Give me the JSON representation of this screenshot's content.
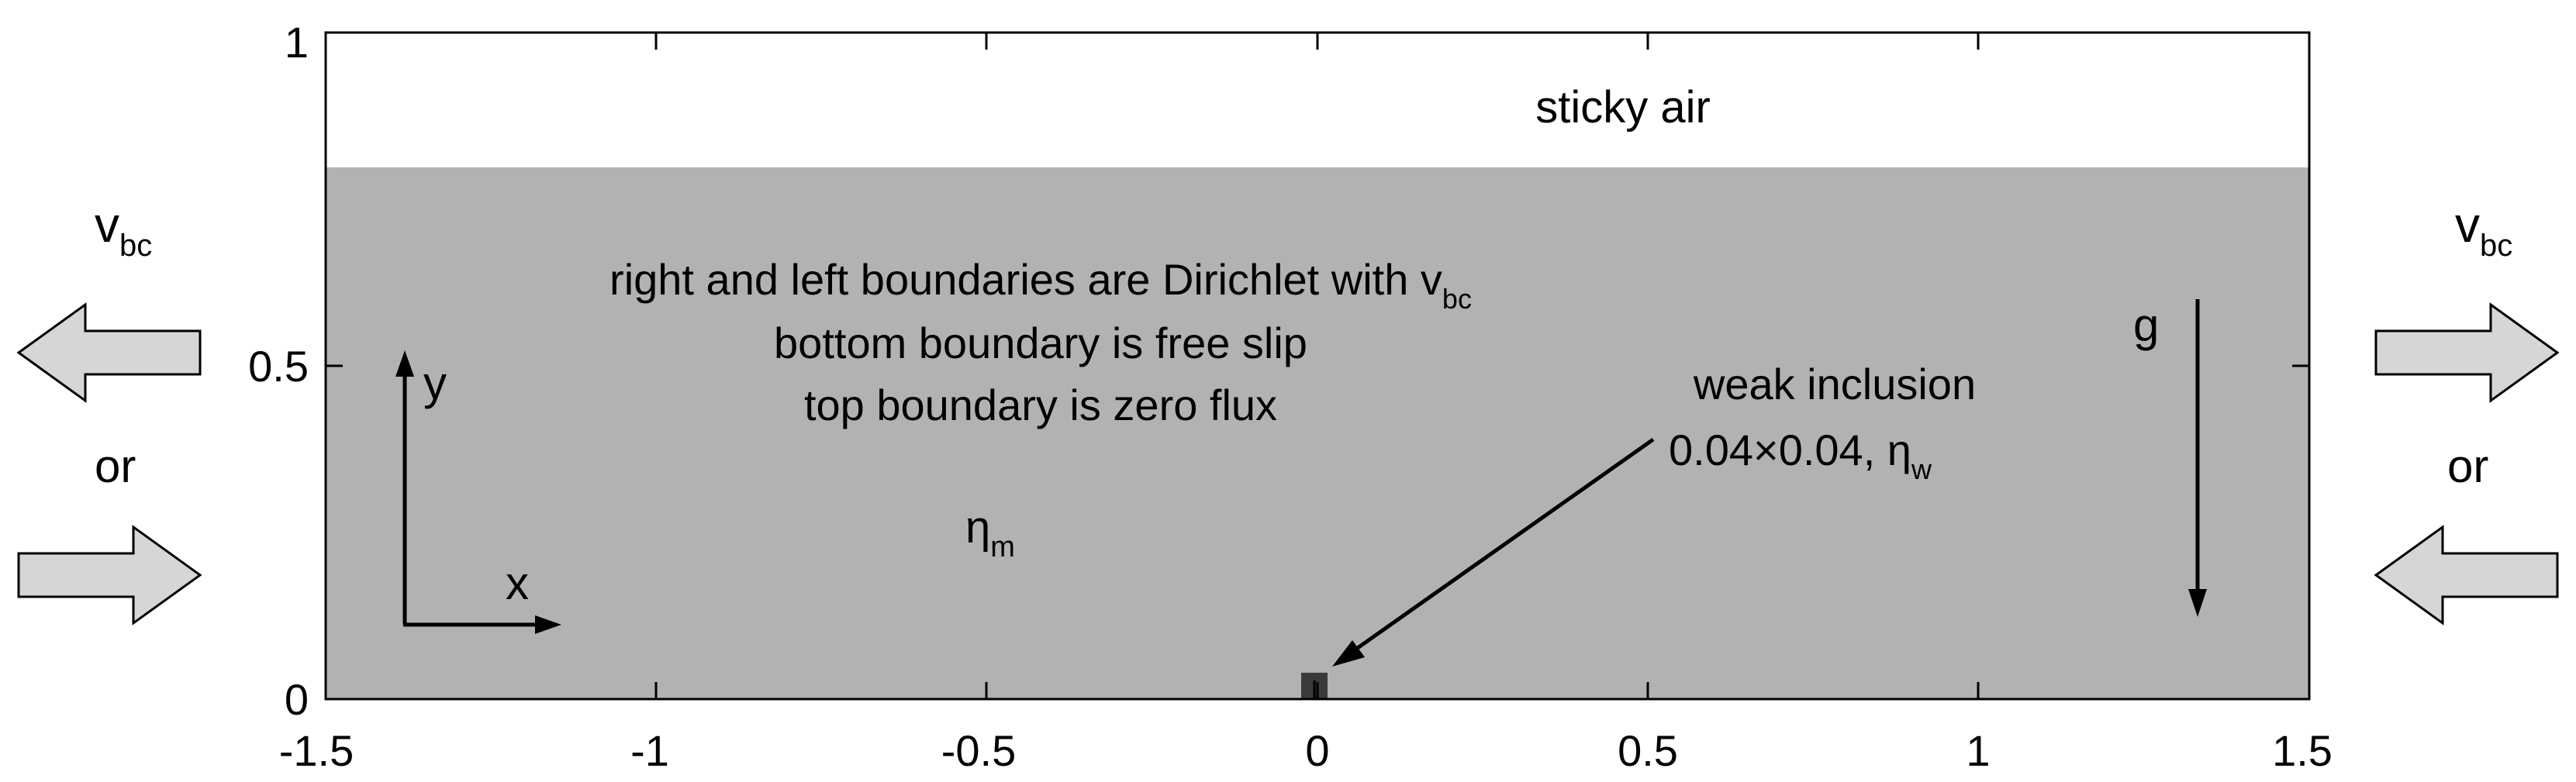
{
  "colors": {
    "medium": "#b2b2b2",
    "sticky_air": "#ffffff",
    "inclusion": "#3a3a3a",
    "arrow_fill": "#d6d6d6",
    "ink": "#000000"
  },
  "axes": {
    "x_ticks": [
      "-1.5",
      "-1",
      "-0.5",
      "0",
      "0.5",
      "1",
      "1.5"
    ],
    "y_ticks": [
      "0",
      "0.5",
      "1"
    ]
  },
  "labels": {
    "sticky_air": "sticky air",
    "boundary_line1_main": "right and left boundaries are Dirichlet with v",
    "boundary_line1_sub": "bc",
    "boundary_line2": "bottom boundary is free slip",
    "boundary_line3": "top boundary is zero flux",
    "eta_m_main": "η",
    "eta_m_sub": "m",
    "axis_y": "y",
    "axis_x": "x",
    "g": "g",
    "weak_inclusion_line1": "weak inclusion",
    "weak_inclusion_line2_main": "0.04×0.04, η",
    "weak_inclusion_line2_sub": "w",
    "left_v_main": "v",
    "left_v_sub": "bc",
    "left_or": "or",
    "right_v_main": "v",
    "right_v_sub": "bc",
    "right_or": "or"
  }
}
